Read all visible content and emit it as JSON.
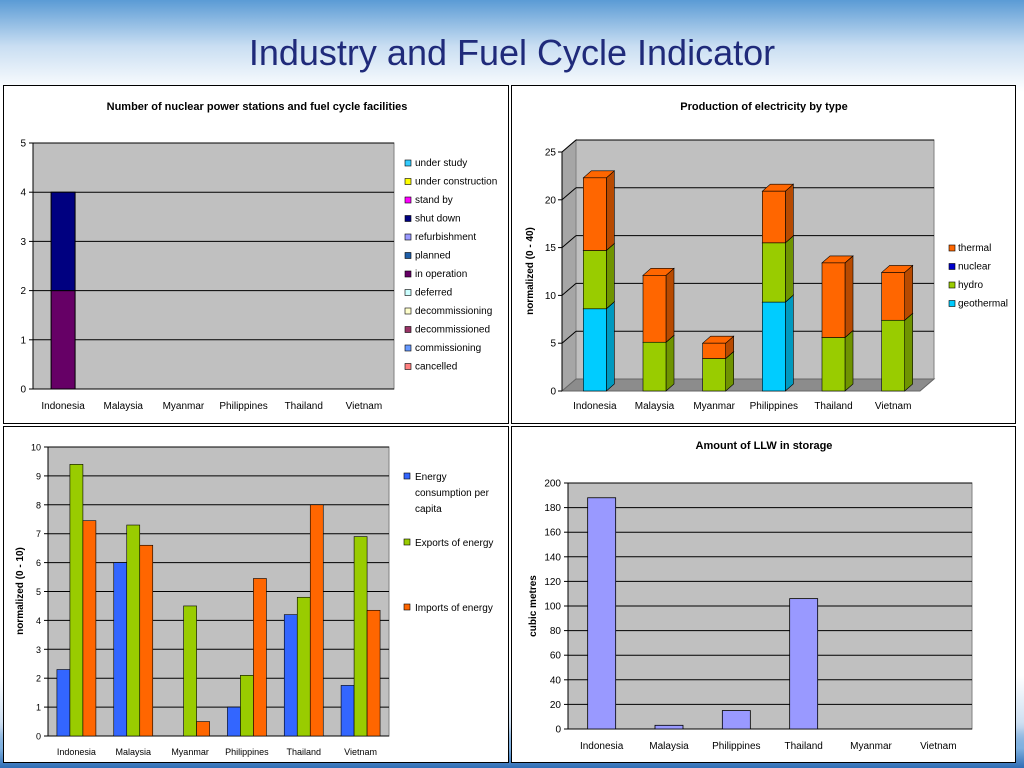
{
  "slide": {
    "title": "Industry and Fuel Cycle Indicator"
  },
  "chart_data": [
    {
      "id": "facilities",
      "type": "bar",
      "stacked": true,
      "title": "Number of nuclear power stations and fuel cycle facilities",
      "xlabel": "",
      "ylabel": "",
      "ylim": [
        0,
        5
      ],
      "yticks": [
        0,
        1,
        2,
        3,
        4,
        5
      ],
      "grid": true,
      "legend_position": "right",
      "categories": [
        "Indonesia",
        "Malaysia",
        "Myanmar",
        "Philippines",
        "Thailand",
        "Vietnam"
      ],
      "legend": [
        "under study",
        "under construction",
        "stand by",
        "shut down",
        "refurbishment",
        "planned",
        "in operation",
        "deferred",
        "decommissioning",
        "decommissioned",
        "commissioning",
        "cancelled"
      ],
      "legend_colors": [
        "#33ccff",
        "#ffff00",
        "#ff00ff",
        "#000080",
        "#9999ff",
        "#1f5fa8",
        "#660066",
        "#ccffff",
        "#ffffcc",
        "#993366",
        "#6699ff",
        "#ff8080"
      ],
      "series": [
        {
          "name": "in operation",
          "color": "#660066",
          "values": [
            2,
            0,
            0,
            0,
            0,
            0
          ]
        },
        {
          "name": "shut down",
          "color": "#000080",
          "values": [
            2,
            0,
            0,
            0,
            0,
            0
          ]
        }
      ]
    },
    {
      "id": "electricity",
      "type": "bar",
      "stacked": true,
      "three_d": true,
      "title": "Production of electricity by type",
      "xlabel": "",
      "ylabel": "normalized (0 - 40)",
      "ylim": [
        0,
        25
      ],
      "yticks": [
        0,
        5,
        10,
        15,
        20,
        25
      ],
      "grid": true,
      "legend_position": "right",
      "categories": [
        "Indonesia",
        "Malaysia",
        "Myanmar",
        "Philippines",
        "Thailand",
        "Vietnam"
      ],
      "legend": [
        "thermal",
        "nuclear",
        "hydro",
        "geothermal"
      ],
      "legend_colors": [
        "#ff6600",
        "#0000cc",
        "#99cc00",
        "#00ccff"
      ],
      "series": [
        {
          "name": "geothermal",
          "color": "#00ccff",
          "side": "#0099bf",
          "values": [
            8.6,
            0,
            0,
            9.3,
            0,
            0
          ]
        },
        {
          "name": "nuclear",
          "color": "#0000cc",
          "side": "#000099",
          "values": [
            0,
            0,
            0,
            0,
            0,
            0
          ]
        },
        {
          "name": "hydro",
          "color": "#99cc00",
          "side": "#6f9400",
          "values": [
            6.1,
            5.1,
            3.4,
            6.2,
            5.6,
            7.4
          ]
        },
        {
          "name": "thermal",
          "color": "#ff6600",
          "side": "#b84a00",
          "values": [
            7.6,
            7.0,
            1.6,
            5.4,
            7.8,
            5.0
          ]
        }
      ]
    },
    {
      "id": "energy",
      "type": "bar",
      "stacked": false,
      "title": "",
      "xlabel": "",
      "ylabel": "normalized (0 - 10)",
      "ylim": [
        0,
        10
      ],
      "yticks": [
        0,
        1,
        2,
        3,
        4,
        5,
        6,
        7,
        8,
        9,
        10
      ],
      "grid": true,
      "legend_position": "right",
      "categories": [
        "Indonesia",
        "Malaysia",
        "Myanmar",
        "Philippines",
        "Thailand",
        "Vietnam"
      ],
      "legend": [
        "Energy consumption per capita",
        "Exports of energy",
        "Imports of energy"
      ],
      "legend_colors": [
        "#3366ff",
        "#99cc00",
        "#ff6600"
      ],
      "series": [
        {
          "name": "Energy consumption per capita",
          "color": "#3366ff",
          "values": [
            2.3,
            6.0,
            0,
            1.0,
            4.2,
            1.75
          ]
        },
        {
          "name": "Exports of energy",
          "color": "#99cc00",
          "values": [
            9.4,
            7.3,
            4.5,
            2.1,
            4.8,
            6.9
          ]
        },
        {
          "name": "Imports of energy",
          "color": "#ff6600",
          "values": [
            7.45,
            6.6,
            0.5,
            5.45,
            8.0,
            4.35
          ]
        }
      ]
    },
    {
      "id": "llw",
      "type": "bar",
      "stacked": false,
      "title": "Amount of LLW in storage",
      "xlabel": "",
      "ylabel": "cubic metres",
      "ylim": [
        0,
        200
      ],
      "yticks": [
        0,
        20,
        40,
        60,
        80,
        100,
        120,
        140,
        160,
        180,
        200
      ],
      "grid": true,
      "categories": [
        "Indonesia",
        "Malaysia",
        "Philippines",
        "Thailand",
        "Myanmar",
        "Vietnam"
      ],
      "series": [
        {
          "name": "",
          "color": "#9999ff",
          "values": [
            188,
            3,
            15,
            106,
            0,
            0
          ]
        }
      ]
    }
  ]
}
